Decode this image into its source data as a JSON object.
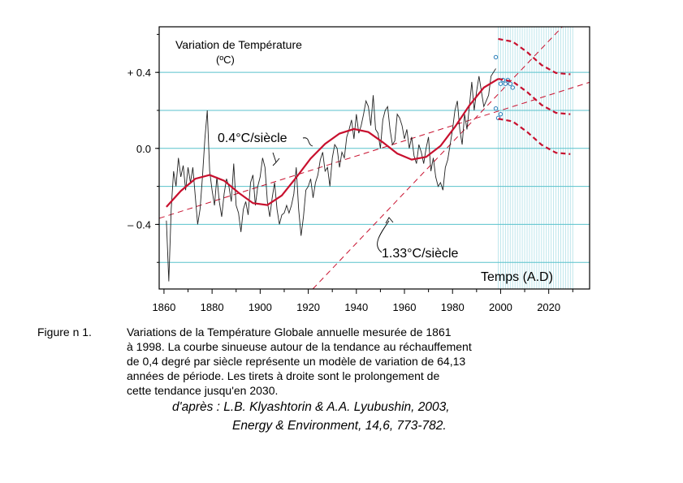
{
  "chart_data": {
    "type": "line",
    "title": "Variation de Température",
    "unit": "(ºC)",
    "xlabel": "Temps (A.D)",
    "ylabel": "",
    "xlim": [
      1858,
      2037
    ],
    "ylim": [
      -0.74,
      0.64
    ],
    "x_ticks": [
      1860,
      1880,
      1900,
      1920,
      1940,
      1960,
      1980,
      2000,
      2020
    ],
    "y_tick_labels": [
      {
        "value": 0.4,
        "label": "+ 0.4"
      },
      {
        "value": 0.0,
        "label": "0.0"
      },
      {
        "value": -0.4,
        "label": "– 0.4"
      }
    ],
    "grid_y": [
      0.4,
      0.2,
      0.0,
      -0.2,
      -0.4,
      -0.6
    ],
    "grid_color": "#59c2cc",
    "curve_color": "#c8102e",
    "series": [
      {
        "x": [
          1861,
          1862,
          1863,
          1864,
          1865,
          1866,
          1867,
          1868,
          1869,
          1870,
          1871,
          1872,
          1873,
          1874,
          1875,
          1876,
          1877,
          1878,
          1879,
          1880,
          1881,
          1882,
          1883,
          1884,
          1885,
          1886,
          1887,
          1888,
          1889,
          1890,
          1891,
          1892,
          1893,
          1894,
          1895,
          1896,
          1897,
          1898,
          1899,
          1900,
          1901,
          1902,
          1903,
          1904,
          1905,
          1906,
          1907,
          1908,
          1909,
          1910,
          1911,
          1912,
          1913,
          1914,
          1915,
          1916,
          1917,
          1918,
          1919,
          1920,
          1921,
          1922,
          1923,
          1924,
          1925,
          1926,
          1927,
          1928,
          1929,
          1930,
          1931,
          1932,
          1933,
          1934,
          1935,
          1936,
          1937,
          1938,
          1939,
          1940,
          1941,
          1942,
          1943,
          1944,
          1945,
          1946,
          1947,
          1948,
          1949,
          1950,
          1951,
          1952,
          1953,
          1954,
          1955,
          1956,
          1957,
          1958,
          1959,
          1960,
          1961,
          1962,
          1963,
          1964,
          1965,
          1966,
          1967,
          1968,
          1969,
          1970,
          1971,
          1972,
          1973,
          1974,
          1975,
          1976,
          1977,
          1978,
          1979,
          1980,
          1981,
          1982,
          1983,
          1984,
          1985,
          1986,
          1987,
          1988,
          1989,
          1990,
          1991,
          1992,
          1993,
          1994,
          1995,
          1996,
          1997,
          1998
        ],
        "values": [
          -0.38,
          -0.7,
          -0.32,
          -0.12,
          -0.2,
          -0.05,
          -0.15,
          -0.09,
          -0.22,
          -0.1,
          -0.18,
          -0.1,
          -0.25,
          -0.4,
          -0.32,
          -0.15,
          0.05,
          0.2,
          -0.12,
          -0.22,
          -0.3,
          -0.15,
          -0.28,
          -0.36,
          -0.24,
          -0.16,
          -0.2,
          -0.28,
          -0.08,
          -0.3,
          -0.34,
          -0.44,
          -0.32,
          -0.28,
          -0.35,
          -0.18,
          -0.14,
          -0.3,
          -0.2,
          -0.15,
          -0.05,
          -0.1,
          -0.28,
          -0.36,
          -0.26,
          -0.18,
          -0.32,
          -0.4,
          -0.35,
          -0.34,
          -0.3,
          -0.34,
          -0.3,
          -0.24,
          -0.1,
          -0.32,
          -0.46,
          -0.36,
          -0.22,
          -0.2,
          -0.16,
          -0.26,
          -0.18,
          -0.14,
          -0.06,
          -0.02,
          -0.12,
          -0.1,
          -0.2,
          -0.05,
          0.02,
          0.0,
          -0.1,
          -0.02,
          -0.05,
          0.06,
          0.1,
          0.15,
          0.05,
          0.18,
          0.08,
          0.12,
          0.18,
          0.25,
          0.22,
          0.12,
          0.28,
          0.1,
          0.08,
          0.0,
          0.15,
          0.2,
          0.22,
          0.1,
          0.02,
          0.04,
          0.18,
          0.16,
          0.12,
          0.05,
          0.1,
          0.0,
          0.06,
          -0.04,
          -0.08,
          0.02,
          -0.02,
          -0.08,
          0.0,
          0.06,
          -0.12,
          -0.05,
          -0.15,
          -0.2,
          -0.18,
          -0.22,
          -0.1,
          -0.06,
          0.02,
          0.1,
          0.2,
          0.25,
          0.1,
          0.02,
          0.18,
          0.1,
          0.22,
          0.35,
          0.2,
          0.3,
          0.38,
          0.3,
          0.22,
          0.25,
          0.28,
          0.38,
          0.4,
          0.42
        ]
      },
      {
        "x": [
          1998,
          2000,
          2001,
          2002,
          2003,
          2004,
          2005
        ],
        "values": [
          0.48,
          0.34,
          0.36,
          0.34,
          0.36,
          0.34,
          0.32
        ]
      },
      {
        "x": [
          1998,
          1999,
          2000
        ],
        "values": [
          0.21,
          0.16,
          0.18
        ]
      },
      {
        "x": [
          1861,
          1867,
          1873,
          1879,
          1885,
          1891,
          1897,
          1903,
          1909,
          1915,
          1921,
          1927,
          1933,
          1939,
          1945,
          1951,
          1957,
          1963,
          1969,
          1975,
          1981,
          1987,
          1993,
          1999,
          2005,
          2011,
          2017,
          2023,
          2029
        ],
        "values": [
          -0.308,
          -0.224,
          -0.16,
          -0.14,
          -0.17,
          -0.233,
          -0.288,
          -0.298,
          -0.248,
          -0.153,
          -0.053,
          0.024,
          0.078,
          0.102,
          0.086,
          0.032,
          -0.027,
          -0.059,
          -0.045,
          0.013,
          0.113,
          0.226,
          0.32,
          0.366,
          0.352,
          0.297,
          0.229,
          0.187,
          0.18
        ]
      }
    ],
    "trend_lines": [
      {
        "label": "0.4°C/siècle",
        "rate_per_century": 0.4,
        "anchor": [
          1950,
          0.0
        ]
      },
      {
        "label": "1.33°C/siècle",
        "rate_per_century": 1.33,
        "anchor": [
          1970,
          -0.1
        ]
      }
    ],
    "forecast": {
      "range": [
        1998,
        2030
      ],
      "envelope_offset": 0.21
    }
  },
  "caption": {
    "number": "Figure n 1.",
    "lines": [
      "Variations de la Température Globale annuelle mesurée de 1861",
      "à 1998. La courbe sinueuse autour de la tendance au réchauffement",
      "de 0,4 degré par siècle représente un modèle de variation de 64,13",
      "années de période. Les tirets à droite sont le prolongement de",
      "cette tendance jusqu'en 2030."
    ],
    "citation_line1": "d'après : L.B. Klyashtorin & A.A. Lyubushin, 2003,",
    "citation_line2": "Energy & Environment, 14,6, 773-782."
  }
}
